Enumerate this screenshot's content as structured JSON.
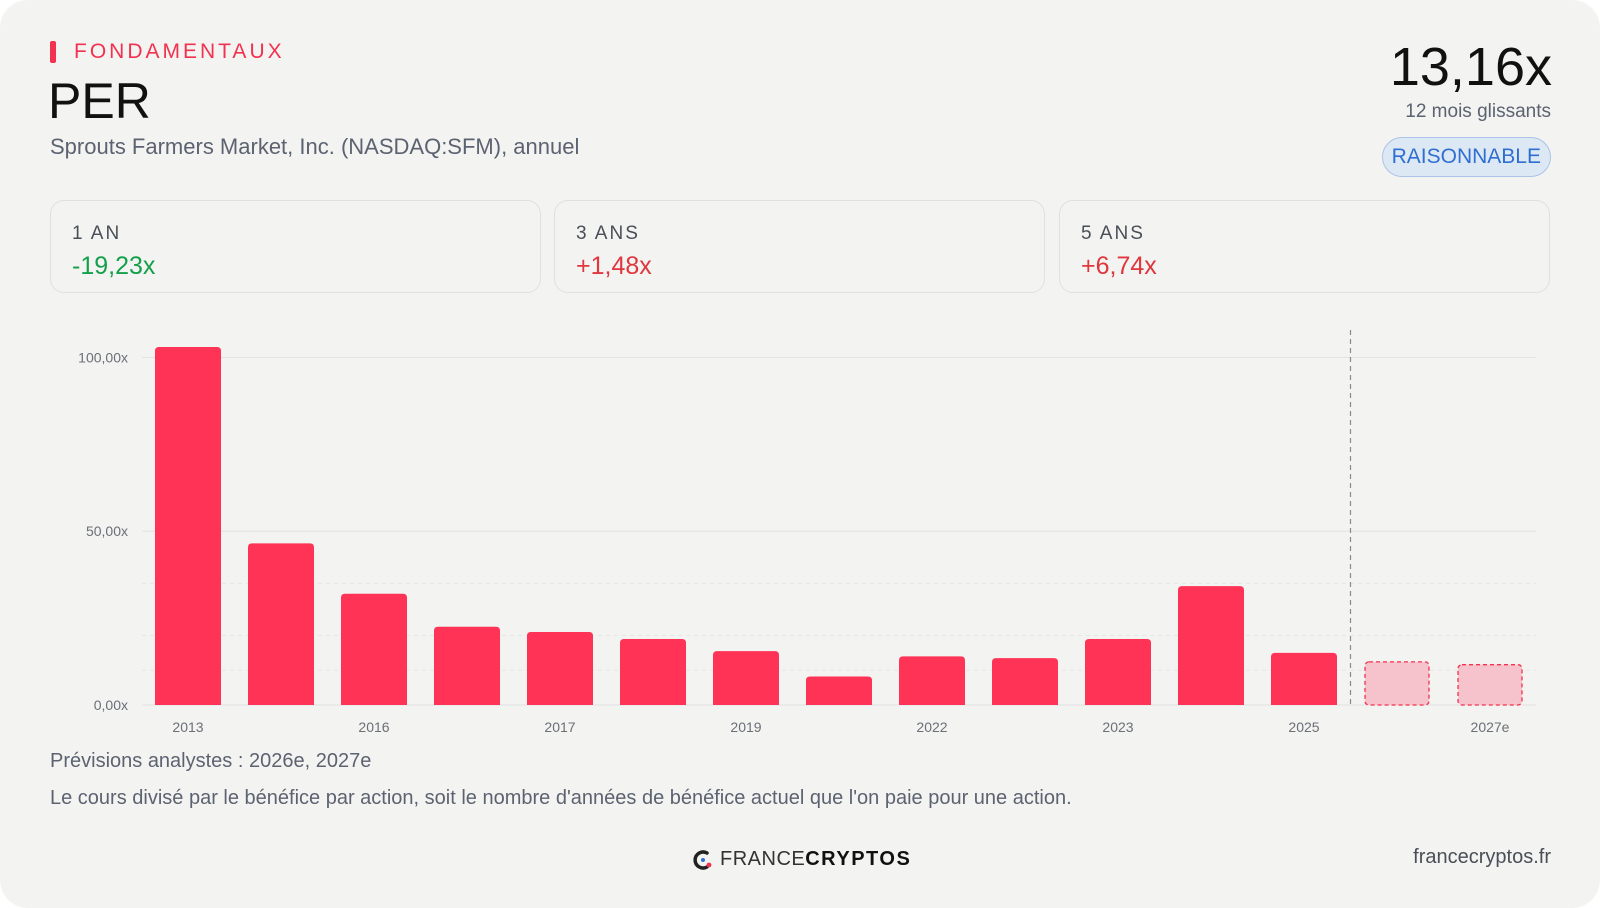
{
  "header": {
    "section_label": "FONDAMENTAUX",
    "title": "PER",
    "subtitle": "Sprouts Farmers Market, Inc. (NASDAQ:SFM), annuel",
    "current_value": "13,16x",
    "current_caption": "12 mois glissants",
    "badge": "RAISONNABLE"
  },
  "stats": [
    {
      "label": "1 AN",
      "value": "-19,23x",
      "tone": "neg"
    },
    {
      "label": "3 ANS",
      "value": "+1,48x",
      "tone": "pos"
    },
    {
      "label": "5 ANS",
      "value": "+6,74x",
      "tone": "pos"
    }
  ],
  "colors": {
    "accent": "#f2324f",
    "bar": "#ff3355",
    "forecast_fill": "#f6c2cb",
    "forecast_border": "#f2324f",
    "negative": "#14a04a",
    "positive": "#e0363d",
    "badge_text": "#2f6fd1"
  },
  "chart_data": {
    "type": "bar",
    "categories": [
      "2013",
      "",
      "2016",
      "",
      "2017",
      "",
      "2019",
      "",
      "2022",
      "",
      "2023",
      "",
      "2025",
      "",
      "2027e"
    ],
    "values": [
      103,
      46.5,
      32,
      22.5,
      21,
      19,
      15.5,
      8.2,
      14,
      13.5,
      19,
      34.2,
      15,
      12.4,
      11.6
    ],
    "forecast": [
      false,
      false,
      false,
      false,
      false,
      false,
      false,
      false,
      false,
      false,
      false,
      false,
      false,
      true,
      true
    ],
    "ylim": [
      0,
      105
    ],
    "yticks": [
      0,
      50,
      100
    ],
    "ytick_labels": [
      "0,00x",
      "50,00x",
      "100,00x"
    ],
    "grid": true,
    "forecast_divider": true
  },
  "footer": {
    "note_forecast": "Prévisions analystes : 2026e, 2027e",
    "note_definition": "Le cours divisé par le bénéfice par action, soit le nombre d'années de bénéfice actuel que l'on paie pour une action.",
    "logo_text_1": "FRANCE",
    "logo_text_2": "CRYPTOS",
    "site": "francecryptos.fr"
  }
}
